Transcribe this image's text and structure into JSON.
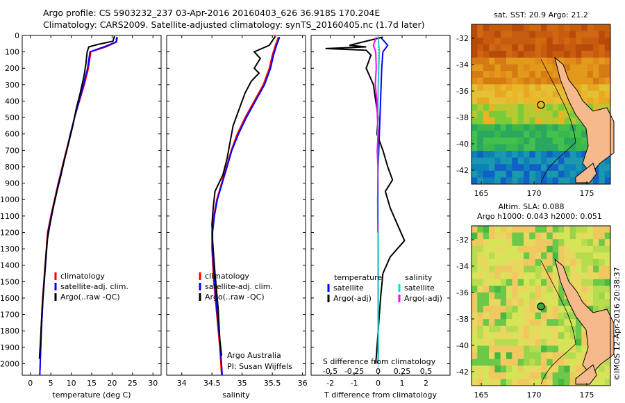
{
  "header": {
    "line1": "Argo profile: CS 5903232_237 03-Apr-2016 20160403_626 36.918S 170.204E",
    "line2": "Climatology: CARS2009. Satellite-adjusted climatology: synTS_20160405.nc (1.7d later)"
  },
  "colors": {
    "climatology": "#ff0000",
    "satellite": "#0000ff",
    "argo": "#000000",
    "salinity_satellite": "#00e0e0",
    "salinity_argo": "#ff00ff"
  },
  "chart_data": [
    {
      "type": "line",
      "xlabel": "temperature (deg C)",
      "xticks": [
        0,
        5,
        10,
        15,
        20,
        25,
        30
      ],
      "xlim": [
        -2,
        32
      ],
      "ylim": [
        0,
        2070
      ],
      "yticks": [
        0,
        100,
        200,
        300,
        400,
        500,
        600,
        700,
        800,
        900,
        1000,
        1100,
        1200,
        1300,
        1400,
        1500,
        1600,
        1700,
        1800,
        1900,
        2000
      ],
      "legend": [
        "climatology",
        "satellite-adj. clim.",
        "Argo(..raw -QC)"
      ],
      "series": [
        {
          "name": "climatology",
          "color": "#ff0000",
          "points": [
            [
              21.3,
              10
            ],
            [
              21.1,
              40
            ],
            [
              18.5,
              70
            ],
            [
              14.8,
              100
            ],
            [
              14.2,
              200
            ],
            [
              13.2,
              300
            ],
            [
              12.0,
              400
            ],
            [
              10.8,
              500
            ],
            [
              9.8,
              600
            ],
            [
              8.8,
              700
            ],
            [
              7.8,
              800
            ],
            [
              6.8,
              900
            ],
            [
              5.9,
              1000
            ],
            [
              5.0,
              1100
            ],
            [
              4.2,
              1200
            ],
            [
              3.6,
              1400
            ],
            [
              3.0,
              1600
            ],
            [
              2.6,
              1800
            ],
            [
              2.4,
              2000
            ],
            [
              2.3,
              2070
            ]
          ]
        },
        {
          "name": "satellite-adj. clim.",
          "color": "#0000ff",
          "points": [
            [
              21.1,
              10
            ],
            [
              21.0,
              40
            ],
            [
              18.0,
              70
            ],
            [
              14.6,
              100
            ],
            [
              14.0,
              200
            ],
            [
              13.0,
              300
            ],
            [
              11.9,
              400
            ],
            [
              10.8,
              500
            ],
            [
              9.8,
              600
            ],
            [
              8.9,
              700
            ],
            [
              7.9,
              800
            ],
            [
              6.9,
              900
            ],
            [
              6.0,
              1000
            ],
            [
              5.1,
              1100
            ],
            [
              4.3,
              1200
            ],
            [
              3.7,
              1400
            ],
            [
              3.1,
              1600
            ],
            [
              2.7,
              1800
            ],
            [
              2.4,
              2000
            ],
            [
              2.3,
              2070
            ]
          ]
        },
        {
          "name": "Argo(..raw -QC)",
          "color": "#000000",
          "points": [
            [
              20.6,
              5
            ],
            [
              20.2,
              35
            ],
            [
              16.5,
              55
            ],
            [
              14.3,
              70
            ],
            [
              13.9,
              100
            ],
            [
              13.6,
              170
            ],
            [
              13.1,
              250
            ],
            [
              12.2,
              350
            ],
            [
              11.2,
              450
            ],
            [
              10.4,
              550
            ],
            [
              9.4,
              650
            ],
            [
              8.4,
              750
            ],
            [
              7.5,
              850
            ],
            [
              6.5,
              950
            ],
            [
              5.6,
              1050
            ],
            [
              4.8,
              1150
            ],
            [
              4.1,
              1250
            ],
            [
              3.5,
              1450
            ],
            [
              2.9,
              1650
            ],
            [
              2.5,
              1850
            ],
            [
              2.2,
              1970
            ]
          ]
        }
      ]
    },
    {
      "type": "line",
      "xlabel": "salinity",
      "xticks": [
        34,
        34.5,
        35,
        35.5,
        36
      ],
      "xlim": [
        33.75,
        36.05
      ],
      "ylim": [
        0,
        2070
      ],
      "legend": [
        "climatology",
        "satellite-adj. clim.",
        "Argo(..raw -QC)"
      ],
      "annotations": [
        "Argo Australia",
        "PI: Susan Wijffels"
      ],
      "series": [
        {
          "name": "climatology",
          "color": "#ff0000",
          "points": [
            [
              35.6,
              10
            ],
            [
              35.55,
              60
            ],
            [
              35.5,
              120
            ],
            [
              35.45,
              200
            ],
            [
              35.35,
              300
            ],
            [
              35.2,
              400
            ],
            [
              35.05,
              500
            ],
            [
              34.92,
              600
            ],
            [
              34.82,
              700
            ],
            [
              34.74,
              800
            ],
            [
              34.66,
              900
            ],
            [
              34.58,
              1000
            ],
            [
              34.53,
              1100
            ],
            [
              34.5,
              1200
            ],
            [
              34.5,
              1300
            ],
            [
              34.53,
              1500
            ],
            [
              34.58,
              1700
            ],
            [
              34.63,
              1900
            ],
            [
              34.66,
              2070
            ]
          ]
        },
        {
          "name": "satellite-adj. clim.",
          "color": "#0000ff",
          "points": [
            [
              35.62,
              10
            ],
            [
              35.57,
              60
            ],
            [
              35.52,
              120
            ],
            [
              35.47,
              200
            ],
            [
              35.37,
              300
            ],
            [
              35.22,
              400
            ],
            [
              35.07,
              500
            ],
            [
              34.94,
              600
            ],
            [
              34.83,
              700
            ],
            [
              34.75,
              800
            ],
            [
              34.67,
              900
            ],
            [
              34.59,
              1000
            ],
            [
              34.54,
              1100
            ],
            [
              34.51,
              1200
            ],
            [
              34.51,
              1300
            ],
            [
              34.54,
              1500
            ],
            [
              34.59,
              1700
            ],
            [
              34.64,
              1900
            ],
            [
              34.67,
              2070
            ]
          ]
        },
        {
          "name": "Argo(..raw -QC)",
          "color": "#000000",
          "points": [
            [
              35.55,
              5
            ],
            [
              35.45,
              60
            ],
            [
              35.2,
              100
            ],
            [
              35.3,
              140
            ],
            [
              35.2,
              200
            ],
            [
              35.28,
              230
            ],
            [
              35.15,
              280
            ],
            [
              35.05,
              350
            ],
            [
              34.95,
              450
            ],
            [
              34.85,
              550
            ],
            [
              34.8,
              650
            ],
            [
              34.75,
              750
            ],
            [
              34.68,
              850
            ],
            [
              34.55,
              950
            ],
            [
              34.52,
              1050
            ],
            [
              34.5,
              1150
            ],
            [
              34.51,
              1250
            ],
            [
              34.55,
              1450
            ],
            [
              34.6,
              1650
            ],
            [
              34.63,
              1850
            ],
            [
              34.66,
              1950
            ]
          ]
        }
      ]
    },
    {
      "type": "line",
      "xlabel": "T difference from climatology",
      "xticks": [
        -2,
        -1,
        0,
        1,
        2
      ],
      "top_xlabel": "S difference from climatology",
      "top_xticks": [
        "-0.5",
        "-0.25",
        "0",
        "0.25",
        "0.5"
      ],
      "xlim": [
        -2.8,
        3.0
      ],
      "ylim": [
        0,
        2070
      ],
      "legend": [
        "temperature",
        "satellite",
        "Argo(-adj)",
        "salinity",
        "satellite",
        "Argo(-adj)"
      ],
      "series": [
        {
          "name": "satellite",
          "color": "#0000ff",
          "points": [
            [
              0.1,
              10
            ],
            [
              0.4,
              60
            ],
            [
              0.2,
              100
            ],
            [
              0.15,
              200
            ],
            [
              0.1,
              400
            ],
            [
              0.05,
              600
            ],
            [
              0.0,
              800
            ],
            [
              -0.02,
              1000
            ],
            [
              0.0,
              1200
            ],
            [
              0.0,
              1500
            ],
            [
              0.0,
              1800
            ],
            [
              0.0,
              2000
            ]
          ]
        },
        {
          "name": "Argo(-adj)",
          "color": "#000000",
          "points": [
            [
              0.2,
              10
            ],
            [
              -1.2,
              60
            ],
            [
              -0.5,
              70
            ],
            [
              -2.2,
              80
            ],
            [
              -0.5,
              90
            ],
            [
              -0.3,
              120
            ],
            [
              -0.5,
              200
            ],
            [
              -0.2,
              300
            ],
            [
              -0.1,
              400
            ],
            [
              0.0,
              500
            ],
            [
              -0.05,
              600
            ],
            [
              0.2,
              700
            ],
            [
              0.4,
              800
            ],
            [
              0.6,
              880
            ],
            [
              0.3,
              950
            ],
            [
              0.5,
              1050
            ],
            [
              0.8,
              1150
            ],
            [
              1.1,
              1250
            ],
            [
              0.5,
              1350
            ],
            [
              0.2,
              1450
            ],
            [
              0.1,
              1600
            ],
            [
              0.0,
              1800
            ],
            [
              -0.1,
              2000
            ]
          ]
        },
        {
          "name": "satellite",
          "color": "#00e0e0",
          "points": [
            [
              0.0,
              10
            ],
            [
              0.05,
              100
            ],
            [
              0.0,
              300
            ],
            [
              -0.02,
              600
            ],
            [
              0.0,
              900
            ],
            [
              0.0,
              1200
            ],
            [
              0.0,
              1500
            ],
            [
              0.0,
              1800
            ],
            [
              0.0,
              2000
            ]
          ]
        },
        {
          "name": "Argo(-adj)",
          "color": "#ff00ff",
          "points": [
            [
              -0.08,
              10
            ],
            [
              -0.2,
              60
            ],
            [
              -0.1,
              100
            ],
            [
              -0.08,
              200
            ],
            [
              -0.12,
              300
            ],
            [
              -0.05,
              400
            ],
            [
              -0.03,
              500
            ],
            [
              0.0,
              600
            ],
            [
              -0.02,
              650
            ],
            [
              -0.04,
              700
            ],
            [
              -0.01,
              800
            ],
            [
              -0.01,
              900
            ],
            [
              -0.02,
              1000
            ],
            [
              -0.02,
              1100
            ],
            [
              -0.01,
              1200
            ]
          ]
        }
      ]
    }
  ],
  "maps": [
    {
      "title": "sat. SST: 20.9 Argo: 21.2",
      "yticks": [
        "-32",
        "-34",
        "-36",
        "-38",
        "-40",
        "-42"
      ],
      "xticks": [
        "165",
        "170",
        "175"
      ]
    },
    {
      "title_line1": "Altim. SLA: 0.088",
      "title_line2": "Argo h1000: 0.043 h2000: 0.051",
      "yticks": [
        "-32",
        "-34",
        "-36",
        "-38",
        "-40",
        "-42"
      ],
      "xticks": [
        "165",
        "170",
        "175"
      ]
    }
  ],
  "side_note": "©IMOS 12-Apr-2016 20:38:37"
}
